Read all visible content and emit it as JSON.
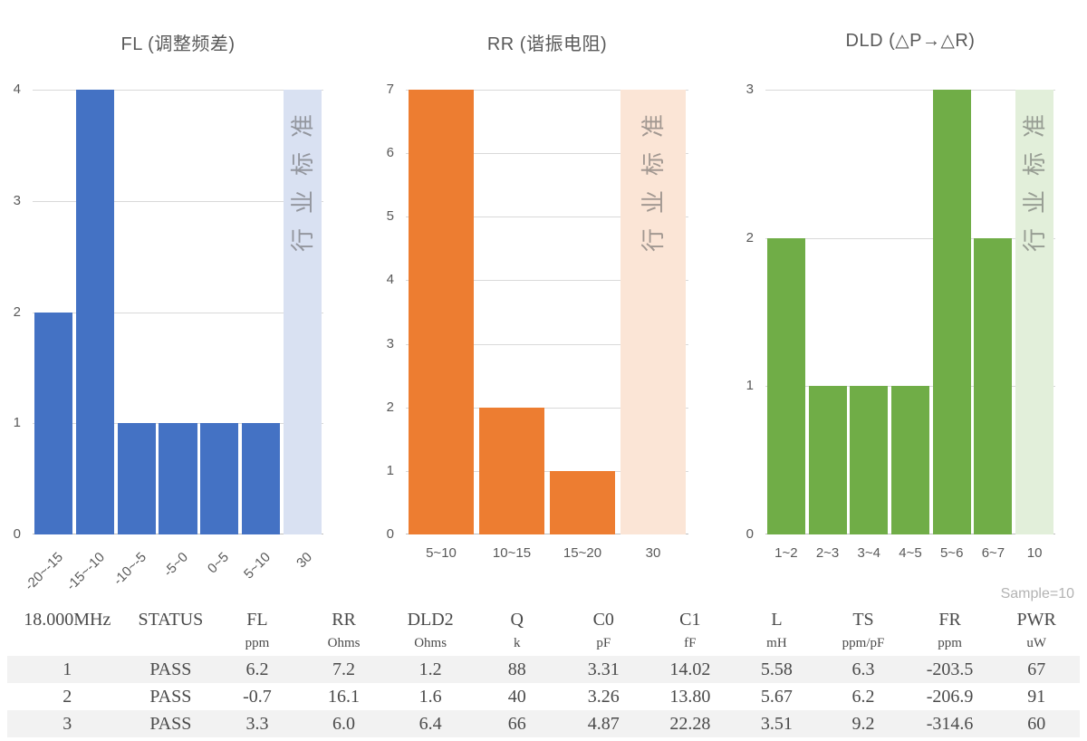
{
  "chart_data": [
    {
      "type": "bar",
      "title": "FL (调整频差)",
      "categories": [
        "-20~-15",
        "-15~-10",
        "-10~-5",
        "-5~0",
        "0~5",
        "5~10"
      ],
      "values": [
        2,
        4,
        1,
        1,
        1,
        1
      ],
      "standard": {
        "category": "30",
        "label": "行业标准",
        "value": 4
      },
      "xlabel": "",
      "ylabel": "",
      "ylim": [
        0,
        4
      ],
      "yticks": [
        0,
        1,
        2,
        3,
        4
      ],
      "bar_color": "#4472C4",
      "standard_color": "#D9E1F2",
      "x_labels_rotated": true,
      "grid": true,
      "legend": "none"
    },
    {
      "type": "bar",
      "title": "RR (谐振电阻)",
      "categories": [
        "5~10",
        "10~15",
        "15~20"
      ],
      "values": [
        7,
        2,
        1
      ],
      "standard": {
        "category": "30",
        "label": "行业标准",
        "value": 7
      },
      "xlabel": "",
      "ylabel": "",
      "ylim": [
        0,
        7
      ],
      "yticks": [
        0,
        1,
        2,
        3,
        4,
        5,
        6,
        7
      ],
      "bar_color": "#ED7D31",
      "standard_color": "#FBE5D6",
      "x_labels_rotated": false,
      "grid": true,
      "legend": "none"
    },
    {
      "type": "bar",
      "title": "DLD (△P→△R)",
      "categories": [
        "1~2",
        "2~3",
        "3~4",
        "4~5",
        "5~6",
        "6~7"
      ],
      "values": [
        2,
        1,
        1,
        1,
        3,
        2
      ],
      "standard": {
        "category": "10",
        "label": "行业标准",
        "value": 3
      },
      "xlabel": "",
      "ylabel": "",
      "ylim": [
        0,
        3
      ],
      "yticks": [
        0,
        1,
        2,
        3
      ],
      "bar_color": "#70AD47",
      "standard_color": "#E2EFDA",
      "x_labels_rotated": false,
      "grid": true,
      "legend": "none"
    }
  ],
  "table": {
    "sample_label": "Sample=10",
    "columns": [
      {
        "name": "18.000MHz",
        "unit": ""
      },
      {
        "name": "STATUS",
        "unit": ""
      },
      {
        "name": "FL",
        "unit": "ppm"
      },
      {
        "name": "RR",
        "unit": "Ohms"
      },
      {
        "name": "DLD2",
        "unit": "Ohms"
      },
      {
        "name": "Q",
        "unit": "k"
      },
      {
        "name": "C0",
        "unit": "pF"
      },
      {
        "name": "C1",
        "unit": "fF"
      },
      {
        "name": "L",
        "unit": "mH"
      },
      {
        "name": "TS",
        "unit": "ppm/pF"
      },
      {
        "name": "FR",
        "unit": "ppm"
      },
      {
        "name": "PWR",
        "unit": "uW"
      }
    ],
    "rows": [
      [
        "1",
        "PASS",
        "6.2",
        "7.2",
        "1.2",
        "88",
        "3.31",
        "14.02",
        "5.58",
        "6.3",
        "-203.5",
        "67"
      ],
      [
        "2",
        "PASS",
        "-0.7",
        "16.1",
        "1.6",
        "40",
        "3.26",
        "13.80",
        "5.67",
        "6.2",
        "-206.9",
        "91"
      ],
      [
        "3",
        "PASS",
        "3.3",
        "6.0",
        "6.4",
        "66",
        "4.87",
        "22.28",
        "3.51",
        "9.2",
        "-314.6",
        "60"
      ]
    ]
  }
}
